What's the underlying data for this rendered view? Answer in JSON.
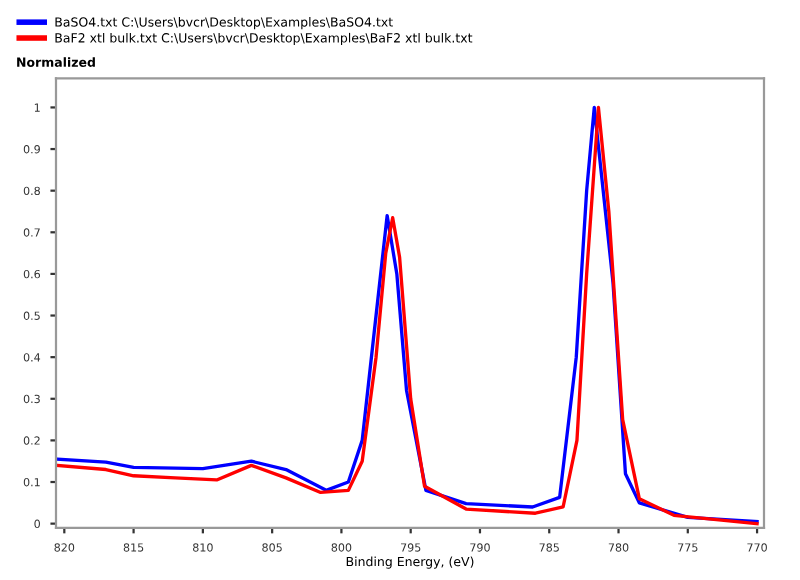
{
  "chart_data": {
    "type": "line",
    "ylabel": "Normalized",
    "xlabel": "Binding Energy, (eV)",
    "legend": "top left",
    "grid": false,
    "marker": "none",
    "line_style": "solid",
    "xlim": [
      820.6,
      769.5
    ],
    "xticks": [
      820,
      815,
      810,
      805,
      800,
      795,
      790,
      785,
      780,
      775,
      770
    ],
    "ylim": [
      -0.01,
      1.07
    ],
    "yticks": [
      0,
      0.1,
      0.2,
      0.3,
      0.4,
      0.5,
      0.6,
      0.7,
      0.8,
      0.9,
      1
    ],
    "series": [
      {
        "name": "BaSO4.txt C:\\Users\\bvcr\\Desktop\\Examples\\BaSO4.txt",
        "color": "#0000ff",
        "x": [
          820.5,
          817,
          815,
          810,
          806.5,
          804,
          801.1,
          799.5,
          798.5,
          797.5,
          796.7,
          796,
          795.3,
          793.9,
          791,
          786.2,
          784.25,
          783.05,
          782.3,
          781.75,
          780.4,
          779.5,
          778.5,
          775,
          770
        ],
        "values": [
          0.155,
          0.148,
          0.135,
          0.132,
          0.15,
          0.13,
          0.08,
          0.1,
          0.2,
          0.5,
          0.74,
          0.6,
          0.32,
          0.08,
          0.048,
          0.04,
          0.063,
          0.4,
          0.8,
          1.0,
          0.58,
          0.12,
          0.05,
          0.015,
          0.005
        ]
      },
      {
        "name": "BaF2 xtl bulk.txt C:\\Users\\bvcr\\Desktop\\Examples\\BaF2 xtl bulk.txt",
        "color": "#ff0000",
        "x": [
          820.5,
          817,
          815,
          812,
          809,
          806.5,
          804,
          801.5,
          799.5,
          798.5,
          797.5,
          796.8,
          796.3,
          795.8,
          795,
          794,
          791,
          786,
          784,
          783,
          782.3,
          781.45,
          780.7,
          779.7,
          778.5,
          776,
          770
        ],
        "values": [
          0.14,
          0.13,
          0.115,
          0.11,
          0.105,
          0.14,
          0.11,
          0.075,
          0.08,
          0.15,
          0.4,
          0.65,
          0.735,
          0.64,
          0.3,
          0.09,
          0.035,
          0.025,
          0.04,
          0.2,
          0.6,
          1.0,
          0.75,
          0.25,
          0.06,
          0.02,
          0.0
        ]
      }
    ]
  }
}
